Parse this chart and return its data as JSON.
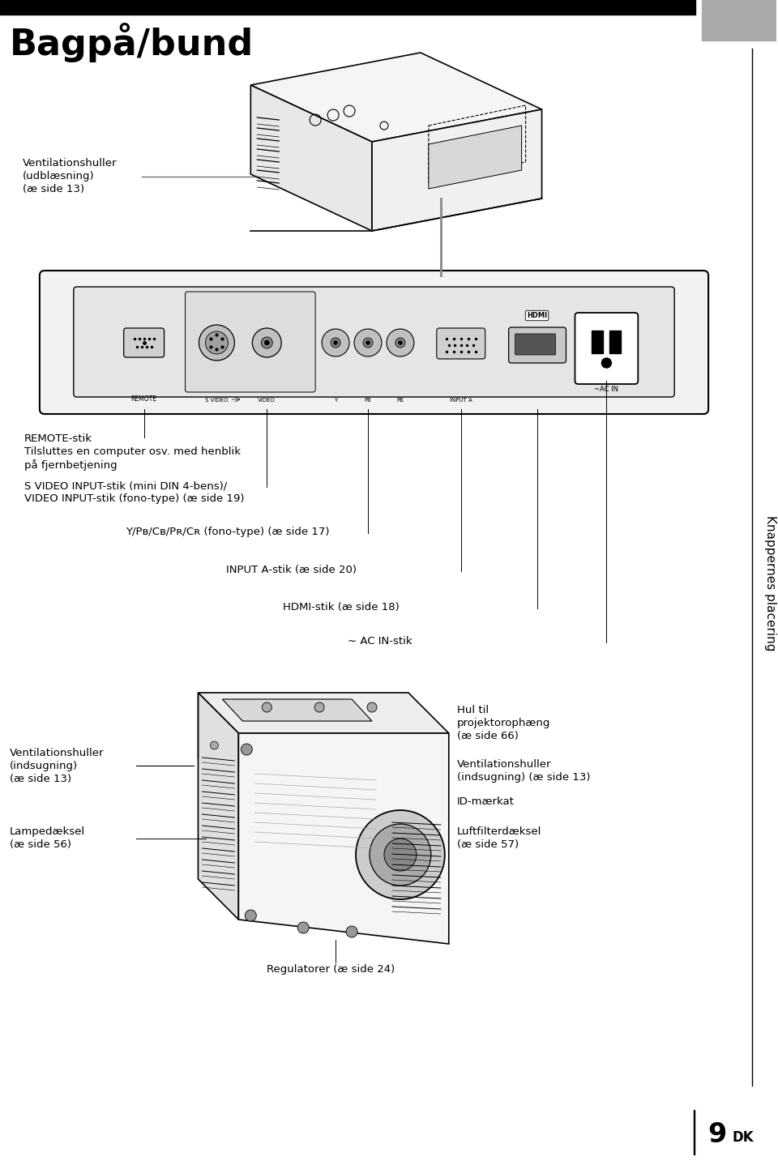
{
  "title": "Bagpå/bund",
  "page_number": "9",
  "page_suffix": "DK",
  "side_label": "Knappernes placering",
  "background_color": "#ffffff",
  "header_bar_color": "#000000",
  "header_bar_gray": "#aaaaaa"
}
